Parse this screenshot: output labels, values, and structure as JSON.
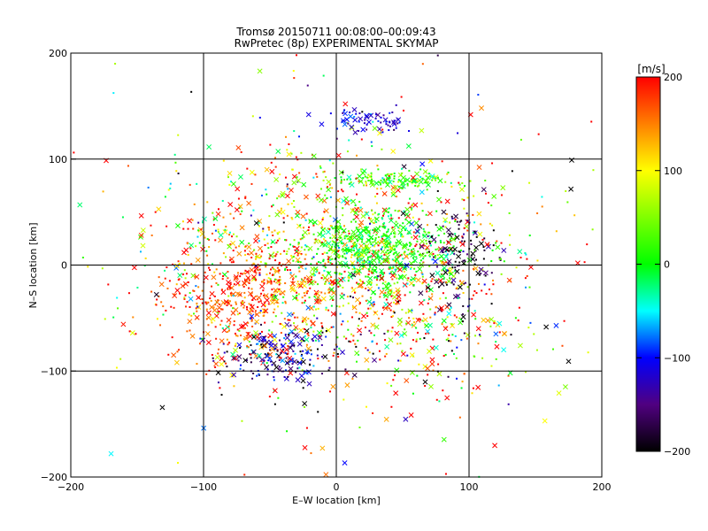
{
  "chart_data": {
    "type": "scatter",
    "title": "Tromsø 20150711 00:08:00–00:09:43",
    "subtitle": "RwPretec (8p) EXPERIMENTAL SKYMAP",
    "xlabel": "E–W location [km]",
    "ylabel": "N–S location [km]",
    "xlim": [
      -200,
      200
    ],
    "ylim": [
      -200,
      200
    ],
    "x_ticks": [
      -200,
      -100,
      0,
      100,
      200
    ],
    "y_ticks": [
      -200,
      -100,
      0,
      100,
      200
    ],
    "x_tick_labels": [
      "−200",
      "−100",
      "0",
      "100",
      "200"
    ],
    "y_tick_labels": [
      "−200",
      "−100",
      "0",
      "100",
      "200"
    ],
    "grid": "lines at ±100 and 0 km",
    "colorbar": {
      "label": "[m/s]",
      "range": [
        -200,
        200
      ],
      "ticks": [
        200,
        100,
        0,
        -100,
        -200
      ],
      "tick_labels": [
        "200",
        "100",
        "0",
        "−100",
        "−200"
      ],
      "stops": [
        {
          "v": -200,
          "color": "#000000"
        },
        {
          "v": -150,
          "color": "#500080"
        },
        {
          "v": -100,
          "color": "#0000ff"
        },
        {
          "v": -50,
          "color": "#00ffff"
        },
        {
          "v": 0,
          "color": "#00ff00"
        },
        {
          "v": 100,
          "color": "#ffff00"
        },
        {
          "v": 200,
          "color": "#ff0000"
        }
      ]
    },
    "markers": [
      "x (large)",
      "dot (small)"
    ],
    "clusters": [
      {
        "cx": -5,
        "cy": 5,
        "sx": 60,
        "sy": 45,
        "n": 900,
        "v_mean": 120,
        "v_sd": 90
      },
      {
        "cx": 30,
        "cy": 15,
        "sx": 30,
        "sy": 18,
        "n": 500,
        "v_mean": 5,
        "v_sd": 25
      },
      {
        "cx": 45,
        "cy": 80,
        "sx": 25,
        "sy": 4,
        "n": 130,
        "v_mean": 20,
        "v_sd": 35
      },
      {
        "cx": 25,
        "cy": 135,
        "sx": 15,
        "sy": 6,
        "n": 70,
        "v_mean": -110,
        "v_sd": 25
      },
      {
        "cx": 90,
        "cy": 10,
        "sx": 14,
        "sy": 22,
        "n": 120,
        "v_mean": -180,
        "v_sd": 30
      },
      {
        "cx": -40,
        "cy": -85,
        "sx": 22,
        "sy": 14,
        "n": 200,
        "v_mean": -140,
        "v_sd": 50
      },
      {
        "cx": -70,
        "cy": -35,
        "sx": 30,
        "sy": 28,
        "n": 350,
        "v_mean": 175,
        "v_sd": 35
      },
      {
        "cx": 60,
        "cy": -50,
        "sx": 45,
        "sy": 40,
        "n": 300,
        "v_mean": 60,
        "v_sd": 140
      },
      {
        "cx": 0,
        "cy": 0,
        "sx": 110,
        "sy": 105,
        "n": 350,
        "v_mean": 60,
        "v_sd": 160
      }
    ]
  }
}
